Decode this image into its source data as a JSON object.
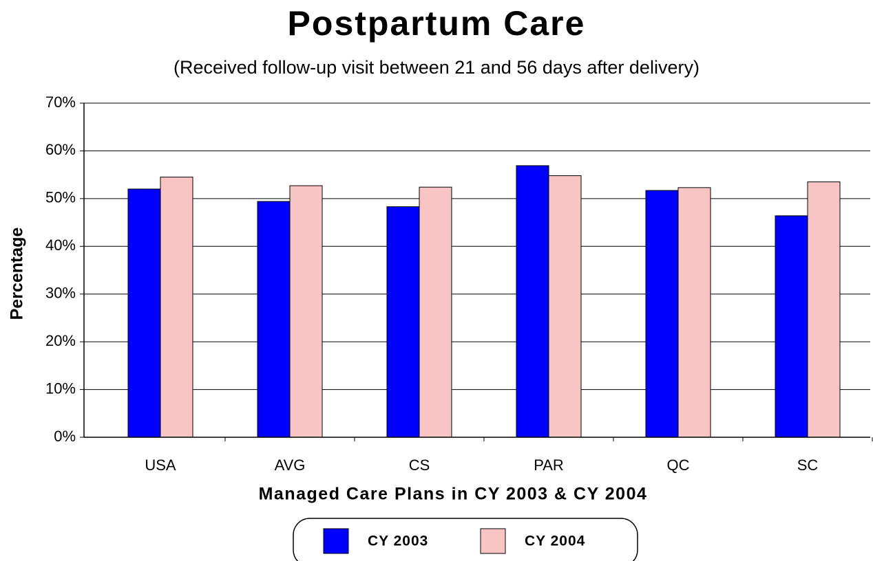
{
  "chart_data": {
    "type": "bar",
    "title": "Postpartum Care",
    "subtitle": "(Received follow-up visit between 21 and 56 days after delivery)",
    "x_label": "Managed Care Plans in CY 2003 & CY 2004",
    "y_label": "Percentage",
    "categories": [
      "USA",
      "AVG",
      "CS",
      "PAR",
      "QC",
      "SC"
    ],
    "series": [
      {
        "name": "CY 2003",
        "color": "#0000ff",
        "values": [
          52.0,
          49.4,
          48.3,
          56.9,
          51.7,
          46.4
        ]
      },
      {
        "name": "CY 2004",
        "color": "#f9c4c4",
        "values": [
          54.5,
          52.7,
          52.4,
          54.8,
          52.3,
          53.5
        ]
      }
    ],
    "ylim": [
      0,
      70
    ],
    "yticks": [
      {
        "value": 0,
        "label": "0%"
      },
      {
        "value": 10,
        "label": "10%"
      },
      {
        "value": 20,
        "label": "20%"
      },
      {
        "value": 30,
        "label": "30%"
      },
      {
        "value": 40,
        "label": "40%"
      },
      {
        "value": 50,
        "label": "50%"
      },
      {
        "value": 60,
        "label": "60%"
      },
      {
        "value": 70,
        "label": "70%"
      }
    ],
    "grid": true
  }
}
